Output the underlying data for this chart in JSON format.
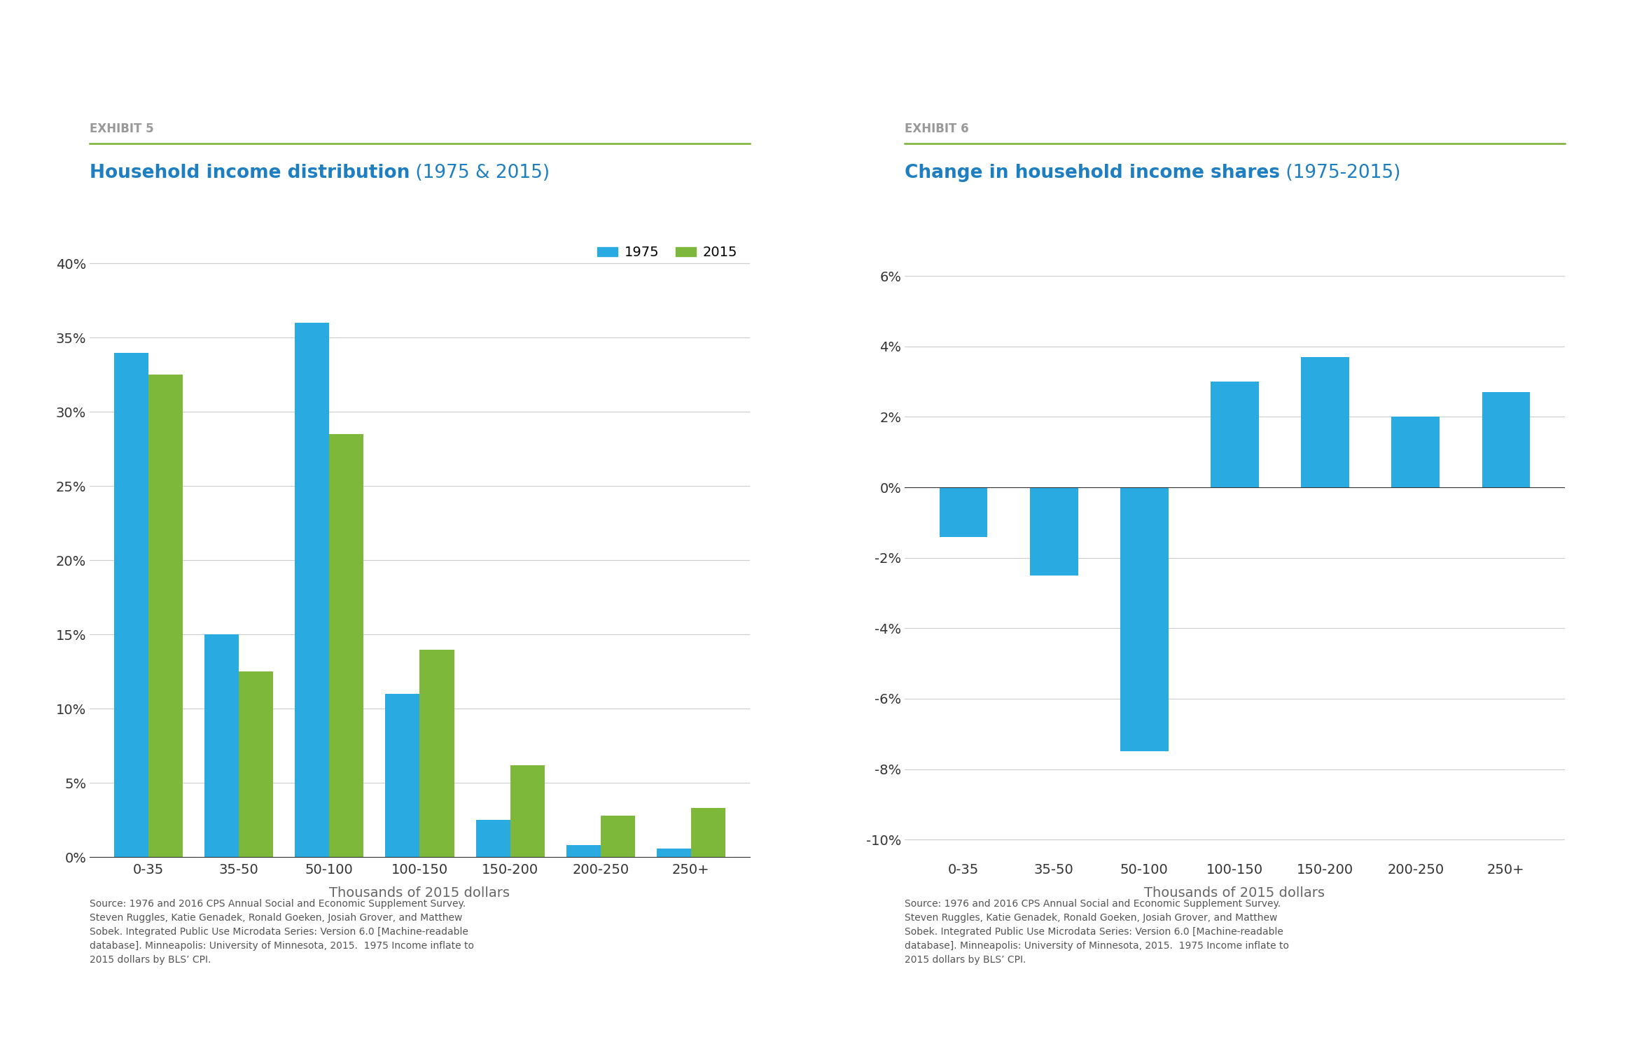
{
  "categories": [
    "0-35",
    "35-50",
    "50-100",
    "100-150",
    "150-200",
    "200-250",
    "250+"
  ],
  "values_1975": [
    0.34,
    0.15,
    0.36,
    0.11,
    0.025,
    0.008,
    0.006
  ],
  "values_2015": [
    0.325,
    0.125,
    0.285,
    0.14,
    0.062,
    0.028,
    0.033
  ],
  "change_values": [
    -0.014,
    -0.025,
    -0.075,
    0.03,
    0.037,
    0.02,
    0.027
  ],
  "bar_color_1975": "#29ABE2",
  "bar_color_2015": "#7EB83A",
  "bar_color_change": "#29ABE2",
  "title1_bold": "Household income distribution",
  "title1_rest": " (1975 & 2015)",
  "title2_bold": "Change in household income shares",
  "title2_rest": " (1975-2015)",
  "exhibit1": "EXHIBIT 5",
  "exhibit2": "EXHIBIT 6",
  "xlabel": "Thousands of 2015 dollars",
  "legend_1975": "1975",
  "legend_2015": "2015",
  "ylim1": [
    0.0,
    0.42
  ],
  "ylim2": [
    -0.105,
    0.072
  ],
  "yticks1": [
    0.0,
    0.05,
    0.1,
    0.15,
    0.2,
    0.25,
    0.3,
    0.35,
    0.4
  ],
  "yticks2": [
    -0.1,
    -0.08,
    -0.06,
    -0.04,
    -0.02,
    0.0,
    0.02,
    0.04,
    0.06
  ],
  "source_text": "Source: 1976 and 2016 CPS Annual Social and Economic Supplement Survey.\nSteven Ruggles, Katie Genadek, Ronald Goeken, Josiah Grover, and Matthew\nSobek. Integrated Public Use Microdata Series: Version 6.0 [Machine-readable\ndatabase]. Minneapolis: University of Minnesota, 2015.  1975 Income inflate to\n2015 dollars by BLS’ CPI.",
  "title_color": "#1D7EC2",
  "exhibit_color": "#999999",
  "line_color": "#78B031",
  "background_color": "#FFFFFF",
  "grid_color": "#CCCCCC",
  "text_color": "#333333",
  "spine_color": "#333333",
  "axis_label_color": "#666666"
}
